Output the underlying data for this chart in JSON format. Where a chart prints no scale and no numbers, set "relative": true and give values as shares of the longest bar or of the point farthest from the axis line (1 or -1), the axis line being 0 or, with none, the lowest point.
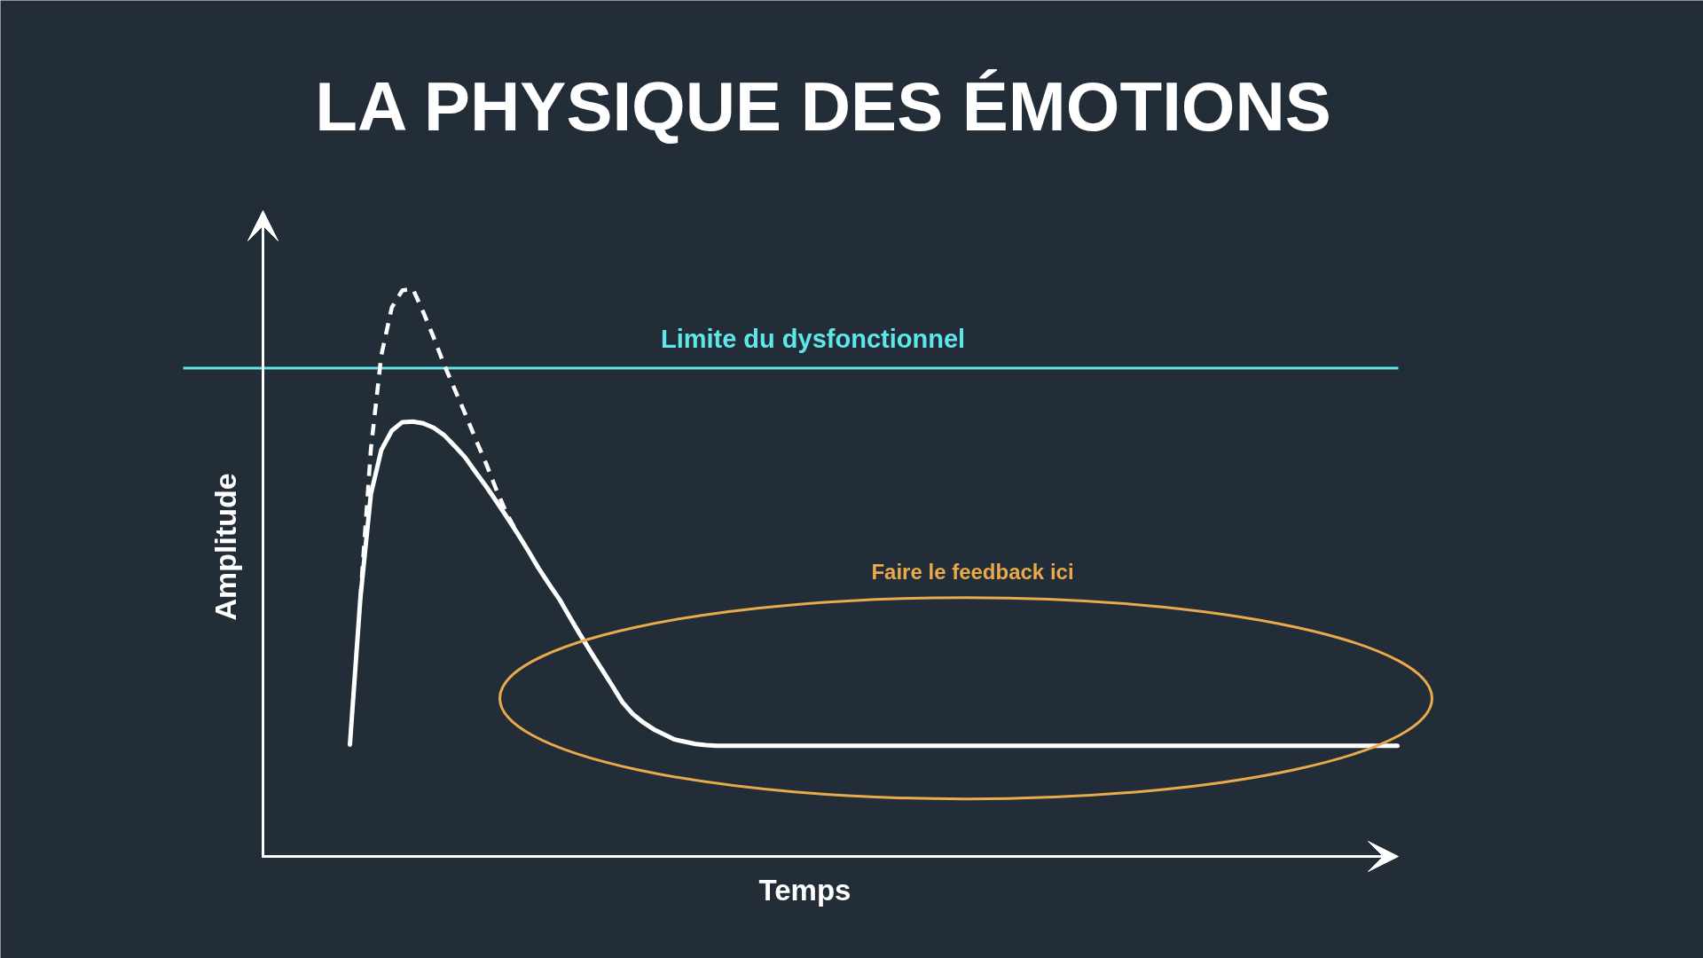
{
  "chart_data": {
    "type": "line",
    "title": "LA PHYSIQUE DES ÉMOTIONS",
    "xlabel": "Temps",
    "ylabel": "Amplitude",
    "relative": true,
    "categories": [
      null,
      null,
      null,
      null,
      null,
      null,
      null,
      null,
      null,
      null,
      null,
      null,
      null,
      null,
      null,
      null,
      null,
      null,
      null,
      null,
      null,
      null,
      null,
      null,
      null,
      null,
      null,
      null,
      null,
      null,
      null,
      null,
      null,
      null,
      null,
      null,
      null,
      null,
      null,
      null,
      null,
      null,
      null,
      null,
      null,
      null,
      null,
      null,
      null,
      null,
      null,
      null,
      null,
      null,
      null,
      null,
      null,
      null,
      null,
      null,
      null,
      null,
      null,
      null,
      null,
      null,
      null,
      null,
      null,
      null,
      null,
      null,
      null,
      null,
      null,
      null,
      null,
      null,
      null,
      null,
      null,
      null,
      null,
      null,
      null,
      null,
      null,
      null,
      null,
      null,
      null,
      null,
      null,
      null,
      null,
      null,
      null,
      null,
      null,
      null,
      null
    ],
    "series": [
      {
        "color": "#ffffff",
        "values": [
          0.197,
          0.455,
          0.638,
          0.716,
          0.75,
          0.765,
          0.766,
          0.763,
          0.755,
          0.742,
          0.723,
          0.703,
          0.677,
          0.652,
          0.625,
          0.597,
          0.569,
          0.539,
          0.508,
          0.48,
          0.453,
          0.421,
          0.39,
          0.36,
          0.331,
          0.302,
          0.272,
          0.251,
          0.236,
          0.224,
          0.215,
          0.206,
          0.202,
          0.198,
          0.196,
          0.195,
          0.195,
          0.195,
          0.195,
          0.195,
          0.195,
          0.195,
          0.195,
          0.195,
          0.195,
          0.195,
          0.195,
          0.195,
          0.195,
          0.195,
          0.195,
          0.195,
          0.195,
          0.195,
          0.195,
          0.195,
          0.195,
          0.195,
          0.195,
          0.195,
          0.195,
          0.195,
          0.195,
          0.195,
          0.195,
          0.195,
          0.195,
          0.195,
          0.195,
          0.195,
          0.195,
          0.195,
          0.195,
          0.195,
          0.195,
          0.195,
          0.195,
          0.195,
          0.195,
          0.195,
          0.195,
          0.195,
          0.195,
          0.195,
          0.195,
          0.195,
          0.195,
          0.195,
          0.195,
          0.195,
          0.195,
          0.195,
          0.195,
          0.195,
          0.195,
          0.195,
          0.195,
          0.195,
          0.195,
          0.195,
          0.195
        ]
      },
      {
        "color": "#ffffff",
        "line_style": "dashed",
        "values": [
          null,
          0.455,
          0.717,
          0.883,
          0.967,
          0.997,
          1,
          0.959,
          0.914,
          0.866,
          0.823,
          0.78,
          0.735,
          0.692,
          0.645,
          0.603,
          0.569,
          null,
          null,
          null,
          null,
          null,
          null,
          null,
          null,
          null,
          null,
          null,
          null,
          null,
          null,
          null,
          null,
          null,
          null,
          null,
          null,
          null,
          null,
          null,
          null,
          null,
          null,
          null,
          null,
          null,
          null,
          null,
          null,
          null,
          null,
          null,
          null,
          null,
          null,
          null,
          null,
          null,
          null,
          null,
          null,
          null,
          null,
          null,
          null,
          null,
          null,
          null,
          null,
          null,
          null,
          null,
          null,
          null,
          null,
          null,
          null,
          null,
          null,
          null,
          null,
          null,
          null,
          null,
          null,
          null,
          null,
          null,
          null,
          null,
          null,
          null,
          null,
          null,
          null,
          null,
          null,
          null,
          null,
          null,
          null
        ]
      }
    ],
    "ref_lines": [
      {
        "axis": "y",
        "value": 0.86,
        "label": "Limite du dysfonctionnel",
        "color": "#5ee6e8"
      }
    ],
    "annotations": [
      "Faire le feedback ici"
    ]
  }
}
